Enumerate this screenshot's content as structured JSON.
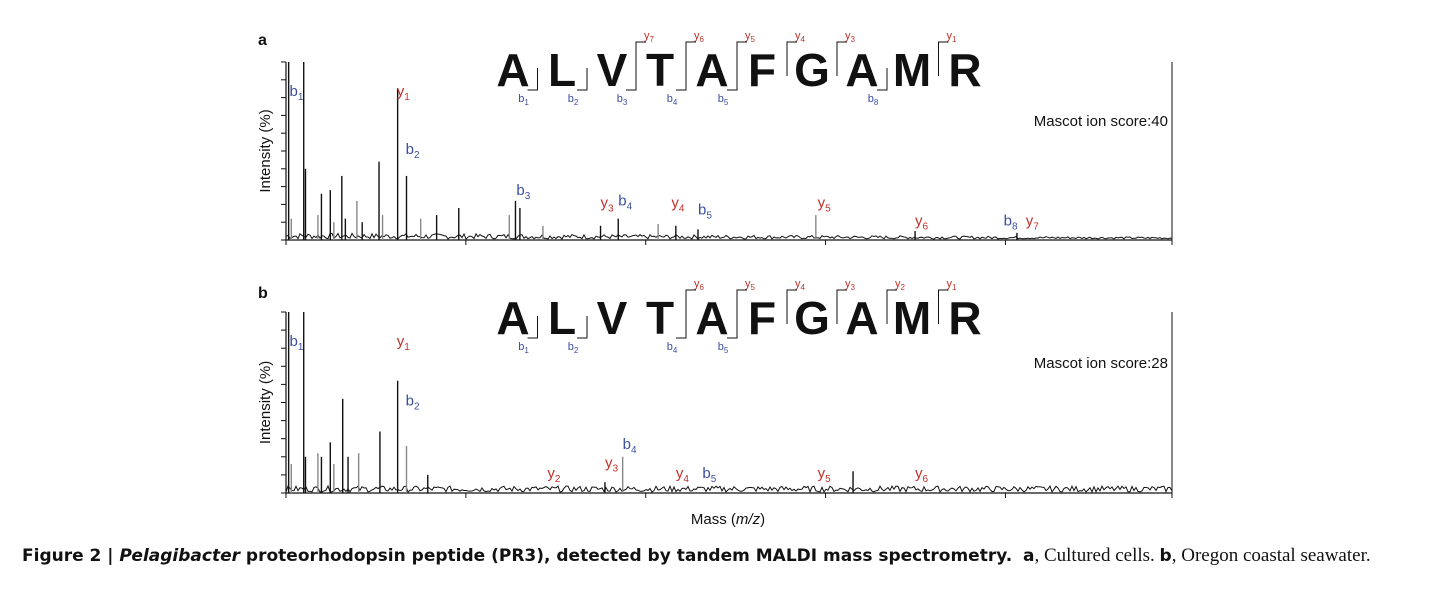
{
  "figure": {
    "x_axis_label_prefix": "Mass (",
    "x_axis_label_italic": "m/z",
    "x_axis_label_suffix": ")",
    "y_axis_label": "Intensity (%)",
    "colors": {
      "b_ion": "#3b4ea0",
      "y_ion": "#c0312b",
      "trace": "#111111",
      "ion_peak": "#888888"
    }
  },
  "caption": {
    "label": "Figure 2 | ",
    "italic": "Pelagibacter",
    "bold_rest": " proteorhodopsin peptide (PR3), detected by tandem MALDI mass spectrometry.",
    "part_a_letter": "a",
    "part_a_text": ", Cultured cells. ",
    "part_b_letter": "b",
    "part_b_text": ", Oregon coastal seawater."
  },
  "chart_data": [
    {
      "type": "line",
      "panel": "a",
      "title": "",
      "xlabel": "Mass (m/z)",
      "ylabel": "Intensity (%)",
      "ylim": [
        0,
        100
      ],
      "sequence": [
        "A",
        "L",
        "V",
        "T",
        "A",
        "F",
        "G",
        "A",
        "M",
        "R"
      ],
      "b_fragments": [
        1,
        2,
        3,
        4,
        5,
        8
      ],
      "y_fragments": [
        7,
        6,
        5,
        4,
        3,
        1
      ],
      "annotation": "Mascot ion score:40",
      "ion_labels": [
        {
          "kind": "b",
          "n": "1",
          "x": 0.4,
          "y": 100
        },
        {
          "kind": "y",
          "n": "1",
          "x": 12.5,
          "y": 100
        },
        {
          "kind": "b",
          "n": "2",
          "x": 13.5,
          "y": 46
        },
        {
          "kind": "b",
          "n": "3",
          "x": 26,
          "y": 23
        },
        {
          "kind": "y",
          "n": "3",
          "x": 35.5,
          "y": 16
        },
        {
          "kind": "b",
          "n": "4",
          "x": 37.5,
          "y": 17
        },
        {
          "kind": "y",
          "n": "4",
          "x": 43.5,
          "y": 16
        },
        {
          "kind": "b",
          "n": "5",
          "x": 46.5,
          "y": 12
        },
        {
          "kind": "y",
          "n": "5",
          "x": 60,
          "y": 16
        },
        {
          "kind": "y",
          "n": "6",
          "x": 71,
          "y": 6
        },
        {
          "kind": "b",
          "n": "8",
          "x": 81,
          "y": 6
        },
        {
          "kind": "y",
          "n": "7",
          "x": 83.5,
          "y": 6
        }
      ],
      "peaks": [
        {
          "x": 0.3,
          "y": 100
        },
        {
          "x": 0.6,
          "y": 12
        },
        {
          "x": 2.0,
          "y": 100
        },
        {
          "x": 2.2,
          "y": 40
        },
        {
          "x": 3.6,
          "y": 14
        },
        {
          "x": 4.0,
          "y": 26
        },
        {
          "x": 5.0,
          "y": 28
        },
        {
          "x": 5.4,
          "y": 10
        },
        {
          "x": 6.3,
          "y": 36
        },
        {
          "x": 6.7,
          "y": 12
        },
        {
          "x": 8.0,
          "y": 22
        },
        {
          "x": 8.6,
          "y": 10
        },
        {
          "x": 10.5,
          "y": 44
        },
        {
          "x": 10.9,
          "y": 14
        },
        {
          "x": 12.6,
          "y": 85
        },
        {
          "x": 13.6,
          "y": 36
        },
        {
          "x": 15.2,
          "y": 12
        },
        {
          "x": 17.0,
          "y": 14
        },
        {
          "x": 19.5,
          "y": 18
        },
        {
          "x": 25.2,
          "y": 14
        },
        {
          "x": 25.9,
          "y": 22
        },
        {
          "x": 26.4,
          "y": 18
        },
        {
          "x": 29.0,
          "y": 8
        },
        {
          "x": 35.5,
          "y": 8
        },
        {
          "x": 37.5,
          "y": 12
        },
        {
          "x": 42.0,
          "y": 9
        },
        {
          "x": 44.0,
          "y": 8
        },
        {
          "x": 46.5,
          "y": 6
        },
        {
          "x": 59.8,
          "y": 14
        },
        {
          "x": 71.0,
          "y": 5
        },
        {
          "x": 82.5,
          "y": 4
        }
      ]
    },
    {
      "type": "line",
      "panel": "b",
      "title": "",
      "xlabel": "Mass (m/z)",
      "ylabel": "Intensity (%)",
      "ylim": [
        0,
        100
      ],
      "sequence": [
        "A",
        "L",
        "V",
        "T",
        "A",
        "F",
        "G",
        "A",
        "M",
        "R"
      ],
      "b_fragments": [
        1,
        2,
        4,
        5
      ],
      "y_fragments": [
        6,
        5,
        4,
        3,
        2,
        1
      ],
      "annotation": "Mascot ion score:28",
      "ion_labels": [
        {
          "kind": "b",
          "n": "1",
          "x": 0.4,
          "y": 100
        },
        {
          "kind": "y",
          "n": "1",
          "x": 12.5,
          "y": 100
        },
        {
          "kind": "b",
          "n": "2",
          "x": 13.5,
          "y": 46
        },
        {
          "kind": "y",
          "n": "2",
          "x": 29.5,
          "y": 6
        },
        {
          "kind": "y",
          "n": "3",
          "x": 36,
          "y": 12
        },
        {
          "kind": "b",
          "n": "4",
          "x": 38,
          "y": 22
        },
        {
          "kind": "y",
          "n": "4",
          "x": 44,
          "y": 6
        },
        {
          "kind": "b",
          "n": "5",
          "x": 47,
          "y": 6
        },
        {
          "kind": "y",
          "n": "5",
          "x": 60,
          "y": 6
        },
        {
          "kind": "y",
          "n": "6",
          "x": 71,
          "y": 6
        }
      ],
      "peaks": [
        {
          "x": 0.3,
          "y": 100
        },
        {
          "x": 0.6,
          "y": 16
        },
        {
          "x": 2.0,
          "y": 100
        },
        {
          "x": 2.2,
          "y": 20
        },
        {
          "x": 3.6,
          "y": 22
        },
        {
          "x": 4.0,
          "y": 20
        },
        {
          "x": 5.0,
          "y": 28
        },
        {
          "x": 5.4,
          "y": 16
        },
        {
          "x": 6.4,
          "y": 52
        },
        {
          "x": 7.0,
          "y": 20
        },
        {
          "x": 8.2,
          "y": 22
        },
        {
          "x": 10.6,
          "y": 34
        },
        {
          "x": 12.6,
          "y": 62
        },
        {
          "x": 13.6,
          "y": 26
        },
        {
          "x": 16.0,
          "y": 10
        },
        {
          "x": 36.0,
          "y": 6
        },
        {
          "x": 38.0,
          "y": 20
        },
        {
          "x": 64.0,
          "y": 12
        }
      ]
    }
  ]
}
